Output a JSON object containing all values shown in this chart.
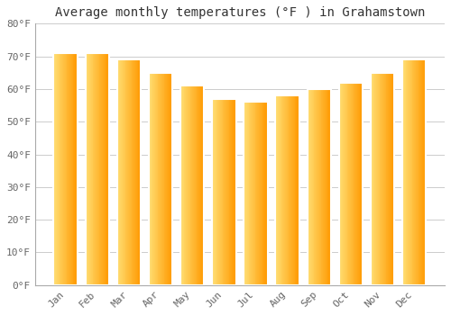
{
  "title": "Average monthly temperatures (°F ) in Grahamstown",
  "months": [
    "Jan",
    "Feb",
    "Mar",
    "Apr",
    "May",
    "Jun",
    "Jul",
    "Aug",
    "Sep",
    "Oct",
    "Nov",
    "Dec"
  ],
  "values": [
    71,
    71,
    69,
    65,
    61,
    57,
    56,
    58,
    60,
    62,
    65,
    69
  ],
  "ylim": [
    0,
    80
  ],
  "yticks": [
    0,
    10,
    20,
    30,
    40,
    50,
    60,
    70,
    80
  ],
  "ytick_labels": [
    "0°F",
    "10°F",
    "20°F",
    "30°F",
    "40°F",
    "50°F",
    "60°F",
    "70°F",
    "80°F"
  ],
  "bar_color_left": "#FFD966",
  "bar_color_right": "#FFA500",
  "bar_edge_color": "#FFFFFF",
  "background_color": "#FFFFFF",
  "grid_color": "#CCCCCC",
  "title_fontsize": 10,
  "tick_fontsize": 8,
  "font_family": "monospace",
  "bar_width": 0.75,
  "n_gradient_steps": 30
}
